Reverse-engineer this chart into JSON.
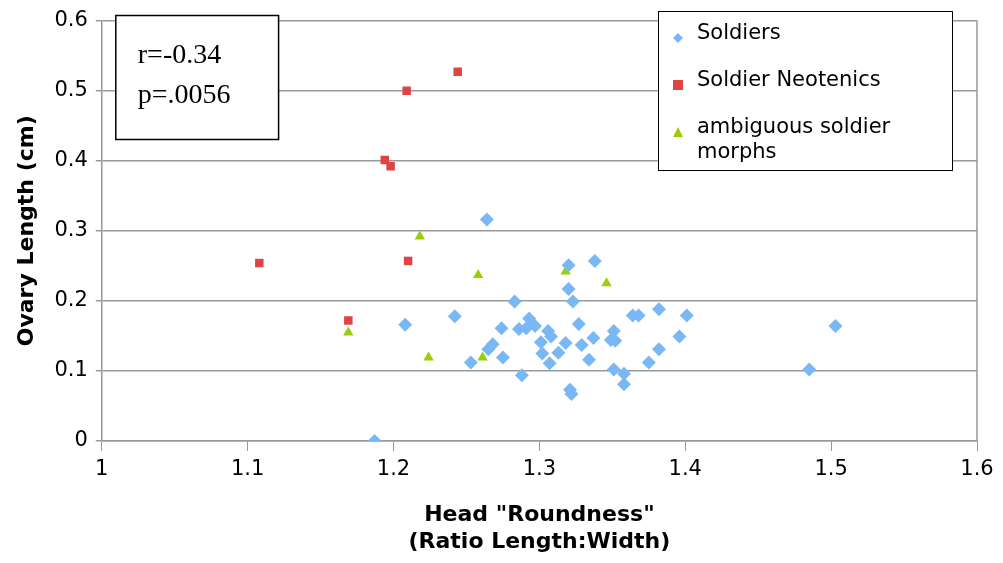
{
  "chart_data": {
    "type": "scatter",
    "xlabel": "Head \"Roundness\"\n(Ratio Length:Width)",
    "ylabel": "Ovary Length (cm)",
    "annotations": [
      "r=-0.34",
      "p=.0056"
    ],
    "xlim": [
      1,
      1.6
    ],
    "xticks": [
      1,
      1.1,
      1.2,
      1.3,
      1.4,
      1.5,
      1.6
    ],
    "ylim": [
      0,
      0.6
    ],
    "yticks": [
      0,
      0.1,
      0.2,
      0.3,
      0.4,
      0.5,
      0.6
    ],
    "grid": "y",
    "legend": "top right",
    "series": [
      {
        "name": "Soldiers",
        "color": "#7ab8f5",
        "marker": "diamond",
        "x": [
          1.187,
          1.208,
          1.242,
          1.264,
          1.253,
          1.263,
          1.265,
          1.268,
          1.275,
          1.274,
          1.283,
          1.286,
          1.288,
          1.291,
          1.293,
          1.297,
          1.301,
          1.302,
          1.306,
          1.308,
          1.307,
          1.312,
          1.313,
          1.318,
          1.32,
          1.32,
          1.321,
          1.322,
          1.323,
          1.327,
          1.329,
          1.334,
          1.338,
          1.337,
          1.351,
          1.349,
          1.352,
          1.351,
          1.358,
          1.358,
          1.364,
          1.368,
          1.375,
          1.382,
          1.382,
          1.396,
          1.401,
          1.485,
          1.503
        ],
        "values": [
          0,
          0.166,
          0.178,
          0.316,
          0.112,
          null,
          0.131,
          0.138,
          0.119,
          0.161,
          0.199,
          0.16,
          0.094,
          0.161,
          0.175,
          0.164,
          0.141,
          0.125,
          0.157,
          0.149,
          0.111,
          null,
          0.126,
          0.14,
          0.251,
          0.217,
          0.073,
          0.067,
          0.199,
          0.167,
          0.137,
          0.116,
          0.257,
          0.147,
          0.157,
          0.144,
          0.143,
          0.102,
          0.096,
          0.081,
          0.179,
          0.179,
          0.112,
          0.188,
          0.131,
          0.149,
          0.179,
          0.102,
          0.164
        ]
      },
      {
        "name": "Soldier Neotenics",
        "color": "#e04343",
        "marker": "square",
        "x": [
          1.108,
          1.169,
          1.194,
          1.198,
          1.209,
          1.244,
          1.21
        ],
        "values": [
          0.254,
          0.172,
          0.401,
          0.392,
          0.5,
          0.527,
          0.257
        ]
      },
      {
        "name": "ambiguous soldier morphs",
        "color": "#9acd0a",
        "marker": "triangle",
        "x": [
          1.169,
          1.218,
          1.224,
          1.258,
          1.261,
          1.318,
          1.346
        ],
        "values": [
          0.155,
          0.292,
          0.119,
          0.237,
          0.119,
          0.242,
          0.225
        ]
      }
    ]
  }
}
